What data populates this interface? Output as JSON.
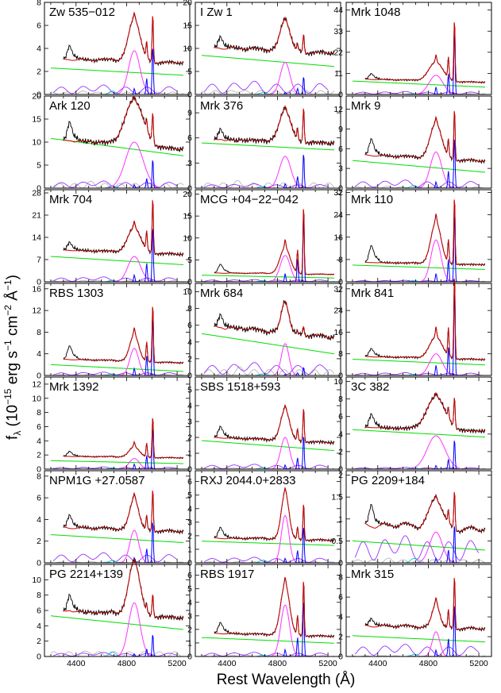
{
  "figure": {
    "xlabel": "Rest Wavelength (Å)",
    "ylabel": {
      "f": "f",
      "sub": "λ",
      "mid": " (10",
      "exp1": "−15",
      "mid2": " erg s",
      "exp2": "−1",
      "mid3": " cm",
      "exp3": "−2",
      "mid4": " Å",
      "exp4": "−1",
      "end": ")"
    }
  },
  "colors": {
    "observed": "#000000",
    "model": "#cc0000",
    "powerlaw": "#00dd00",
    "hbeta_broad": "#ff33ff",
    "oiii": "#0000ff",
    "feii": "#9933ff",
    "heii": "#00cccc",
    "host": "#b0b0b0"
  },
  "chart_data": [
    {
      "type": "line",
      "title": "Zw 535−012",
      "xlim": [
        4150,
        5300
      ],
      "xticks": [
        4400,
        4800,
        5200
      ],
      "ylim": [
        0,
        8
      ],
      "yticks": [
        0,
        2,
        4,
        6,
        8
      ],
      "cont": [
        2.3,
        1.7
      ],
      "base": 3.0,
      "hb": 3.8,
      "o3": 4.3,
      "fe": 0.8,
      "he": 0.3,
      "host": 0.3,
      "hump": 1.2,
      "hbw": 45
    },
    {
      "type": "line",
      "title": "I Zw 1",
      "xlim": [
        4150,
        5300
      ],
      "xticks": [
        4400,
        4800,
        5200
      ],
      "ylim": [
        0,
        20
      ],
      "yticks": [
        0,
        5,
        10,
        15,
        20
      ],
      "cont": [
        8.5,
        6.2
      ],
      "base": 10.0,
      "hb": 7.0,
      "o3": 4.0,
      "fe": 2.8,
      "he": 0.4,
      "host": 1.2,
      "hump": 2.5,
      "hbw": 38
    },
    {
      "type": "line",
      "title": "Mrk 1048",
      "xlim": [
        4150,
        5300
      ],
      "xticks": [
        4400,
        4800,
        5200
      ],
      "ylim": [
        0,
        48
      ],
      "yticks": [
        0,
        11,
        22,
        33,
        44
      ],
      "cont": [
        7.0,
        4.0
      ],
      "base": 8.0,
      "hb": 10.0,
      "o3": 33.0,
      "fe": 1.5,
      "he": 0.5,
      "host": 0.5,
      "hump": 3.0,
      "hbw": 55
    },
    {
      "type": "line",
      "title": "Ark 120",
      "xlim": [
        4150,
        5300
      ],
      "xticks": [
        4400,
        4800,
        5200
      ],
      "ylim": [
        0,
        20
      ],
      "yticks": [
        0,
        5,
        10,
        15,
        20
      ],
      "cont": [
        10.8,
        7.2
      ],
      "base": 10.5,
      "hb": 10.0,
      "o3": 6.5,
      "fe": 1.5,
      "he": 0.5,
      "host": 1.5,
      "hump": 4.0,
      "hbw": 70
    },
    {
      "type": "line",
      "title": "Mrk 376",
      "xlim": [
        4150,
        5300
      ],
      "xticks": [
        4400,
        4800,
        5200
      ],
      "ylim": [
        0,
        11
      ],
      "yticks": [
        0,
        3,
        6,
        9
      ],
      "cont": [
        5.4,
        4.6
      ],
      "base": 5.8,
      "hb": 3.8,
      "o3": 4.3,
      "fe": 0.5,
      "he": 0.2,
      "host": 0.9,
      "hump": 1.2,
      "hbw": 45
    },
    {
      "type": "line",
      "title": "Mrk 9",
      "xlim": [
        4150,
        5300
      ],
      "xticks": [
        4400,
        4800,
        5200
      ],
      "ylim": [
        0,
        14
      ],
      "yticks": [
        0,
        3,
        6,
        9,
        12
      ],
      "cont": [
        4.2,
        2.5
      ],
      "base": 5.0,
      "hb": 5.5,
      "o3": 8.0,
      "fe": 1.2,
      "he": 0.4,
      "host": 0.3,
      "hump": 2.5,
      "hbw": 45
    },
    {
      "type": "line",
      "title": "Mrk 704",
      "xlim": [
        4150,
        5300
      ],
      "xticks": [
        4400,
        4800,
        5200
      ],
      "ylim": [
        0,
        29
      ],
      "yticks": [
        0,
        7,
        14,
        21,
        28
      ],
      "cont": [
        8.0,
        5.5
      ],
      "base": 10.0,
      "hb": 8.0,
      "o3": 18.0,
      "fe": 1.5,
      "he": 0.5,
      "host": 0.5,
      "hump": 2.5,
      "hbw": 50
    },
    {
      "type": "line",
      "title": "MCG +04−22−042",
      "xlim": [
        4150,
        5300
      ],
      "xticks": [
        4400,
        4800,
        5200
      ],
      "ylim": [
        0,
        21
      ],
      "yticks": [
        0,
        5,
        10,
        15,
        20
      ],
      "cont": [
        1.5,
        0.9
      ],
      "base": 2.0,
      "hb": 6.0,
      "o3": 16.0,
      "fe": 0.5,
      "he": 0.3,
      "host": 0.2,
      "hump": 2.0,
      "hbw": 40
    },
    {
      "type": "line",
      "title": "Mrk 110",
      "xlim": [
        4150,
        5300
      ],
      "xticks": [
        4400,
        4800,
        5200
      ],
      "ylim": [
        0,
        33
      ],
      "yticks": [
        0,
        8,
        16,
        24,
        32
      ],
      "cont": [
        6.0,
        4.5
      ],
      "base": 7.0,
      "hb": 15.0,
      "o3": 25.0,
      "fe": 0.5,
      "he": 0.5,
      "host": 0.3,
      "hump": 6.0,
      "hbw": 40
    },
    {
      "type": "line",
      "title": "RBS 1303",
      "xlim": [
        4150,
        5300
      ],
      "xticks": [
        4400,
        4800,
        5200
      ],
      "ylim": [
        0,
        17
      ],
      "yticks": [
        0,
        4,
        8,
        12,
        16
      ],
      "cont": [
        2.0,
        0.8
      ],
      "base": 3.0,
      "hb": 5.0,
      "o3": 11.0,
      "fe": 0.6,
      "he": 0.3,
      "host": 0.2,
      "hump": 2.5,
      "hbw": 35
    },
    {
      "type": "line",
      "title": "Mrk 684",
      "xlim": [
        4150,
        5300
      ],
      "xticks": [
        4400,
        4800,
        5200
      ],
      "ylim": [
        0,
        11
      ],
      "yticks": [
        0,
        2,
        4,
        6,
        8,
        10
      ],
      "cont": [
        5.0,
        2.7
      ],
      "base": 5.8,
      "hb": 3.8,
      "o3": 1.0,
      "fe": 1.5,
      "he": 0.2,
      "host": 1.0,
      "hump": 1.5,
      "hbw": 30
    },
    {
      "type": "line",
      "title": "Mrk 841",
      "xlim": [
        4150,
        5300
      ],
      "xticks": [
        4400,
        4800,
        5200
      ],
      "ylim": [
        0,
        34
      ],
      "yticks": [
        0,
        8,
        16,
        24,
        32
      ],
      "cont": [
        6.0,
        4.0
      ],
      "base": 7.0,
      "hb": 8.0,
      "o3": 32.0,
      "fe": 1.0,
      "he": 0.5,
      "host": 0.3,
      "hump": 3.0,
      "hbw": 50
    },
    {
      "type": "line",
      "title": "Mrk 1392",
      "xlim": [
        4150,
        5300
      ],
      "xticks": [
        4400,
        4800,
        5200
      ],
      "ylim": [
        0,
        13
      ],
      "yticks": [
        0,
        2,
        4,
        6,
        8,
        10,
        12
      ],
      "cont": [
        1.2,
        0.8
      ],
      "base": 1.8,
      "hb": 1.5,
      "o3": 6.0,
      "fe": 0.3,
      "he": 0.2,
      "host": 0.2,
      "hump": 0.7,
      "hbw": 40
    },
    {
      "type": "line",
      "title": "SBS 1518+593",
      "xlim": [
        4150,
        5300
      ],
      "xticks": [
        4400,
        4800,
        5200
      ],
      "ylim": [
        0,
        5.8
      ],
      "yticks": [
        0,
        1,
        2,
        3,
        4,
        5
      ],
      "cont": [
        1.8,
        1.2
      ],
      "base": 2.0,
      "hb": 2.0,
      "o3": 2.2,
      "fe": 0.3,
      "he": 0.1,
      "host": 0.1,
      "hump": 0.7,
      "hbw": 35
    },
    {
      "type": "line",
      "title": "3C 382",
      "xlim": [
        4150,
        5300
      ],
      "xticks": [
        4400,
        4800,
        5200
      ],
      "ylim": [
        0,
        10.5
      ],
      "yticks": [
        0,
        2,
        4,
        6,
        8,
        10
      ],
      "cont": [
        4.5,
        3.7
      ],
      "base": 4.8,
      "hb": 3.8,
      "o3": 3.5,
      "fe": 0.2,
      "he": 0.2,
      "host": 0.1,
      "hump": 1.5,
      "hbw": 70
    },
    {
      "type": "line",
      "title": "NPM1G +27.0587",
      "xlim": [
        4150,
        5300
      ],
      "xticks": [
        4400,
        4800,
        5200
      ],
      "ylim": [
        0,
        8.5
      ],
      "yticks": [
        0,
        2,
        4,
        6,
        8
      ],
      "cont": [
        2.6,
        1.9
      ],
      "base": 3.2,
      "hb": 3.0,
      "o3": 4.0,
      "fe": 0.9,
      "he": 0.2,
      "host": 0.1,
      "hump": 1.2,
      "hbw": 35
    },
    {
      "type": "line",
      "title": "RXJ 2044.0+2833",
      "xlim": [
        4150,
        5300
      ],
      "xticks": [
        4400,
        4800,
        5200
      ],
      "ylim": [
        0,
        6.8
      ],
      "yticks": [
        0,
        1,
        2,
        3,
        4,
        5,
        6
      ],
      "cont": [
        1.6,
        1.3
      ],
      "base": 1.8,
      "hb": 3.5,
      "o3": 2.8,
      "fe": 0.4,
      "he": 0.2,
      "host": 0.1,
      "hump": 0.8,
      "hbw": 30
    },
    {
      "type": "line",
      "title": "PG 2209+184",
      "xlim": [
        4150,
        5300
      ],
      "xticks": [
        4400,
        4800,
        5200
      ],
      "ylim": [
        0,
        2.1
      ],
      "yticks": [
        0,
        0.5,
        1,
        1.5,
        2
      ],
      "cont": [
        0.5,
        0.3
      ],
      "base": 0.8,
      "hb": 0.7,
      "o3": 0.9,
      "fe": 0.6,
      "he": 0.1,
      "host": 0.1,
      "hump": 0.5,
      "hbw": 50
    },
    {
      "type": "line",
      "title": "PG 2214+139",
      "xlim": [
        4150,
        5300
      ],
      "xticks": [
        4400,
        4800,
        5200
      ],
      "ylim": [
        0,
        12
      ],
      "yticks": [
        0,
        2,
        4,
        6,
        8,
        10
      ],
      "cont": [
        5.3,
        3.6
      ],
      "base": 6.0,
      "hb": 7.0,
      "o3": 3.0,
      "fe": 0.5,
      "he": 0.6,
      "host": 0.9,
      "hump": 2.0,
      "hbw": 45
    },
    {
      "type": "line",
      "title": "RBS 1917",
      "xlim": [
        4150,
        5300
      ],
      "xticks": [
        4400,
        4800,
        5200
      ],
      "ylim": [
        0,
        6.8
      ],
      "yticks": [
        0,
        1,
        2,
        3,
        4,
        5,
        6
      ],
      "cont": [
        1.4,
        1.0
      ],
      "base": 1.7,
      "hb": 3.8,
      "o3": 4.3,
      "fe": 0.3,
      "he": 0.1,
      "host": 0.1,
      "hump": 0.8,
      "hbw": 35
    },
    {
      "type": "line",
      "title": "Mrk 315",
      "xlim": [
        4150,
        5300
      ],
      "xticks": [
        4400,
        4800,
        5200
      ],
      "ylim": [
        0,
        9.3
      ],
      "yticks": [
        0,
        2,
        4,
        6,
        8
      ],
      "cont": [
        2.1,
        1.5
      ],
      "base": 3.0,
      "hb": 2.5,
      "o3": 5.5,
      "fe": 1.2,
      "he": 0.2,
      "host": 0.1,
      "hump": 0.8,
      "hbw": 30
    }
  ]
}
